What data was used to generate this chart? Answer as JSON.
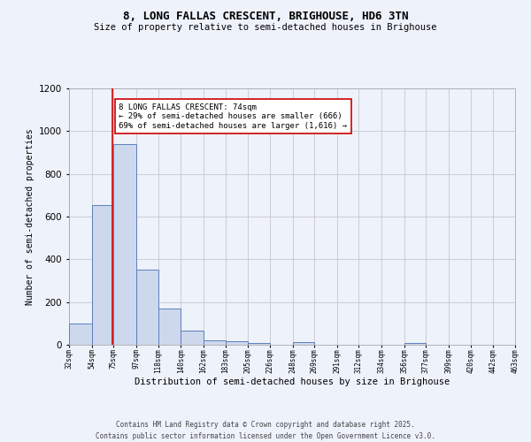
{
  "title_line1": "8, LONG FALLAS CRESCENT, BRIGHOUSE, HD6 3TN",
  "title_line2": "Size of property relative to semi-detached houses in Brighouse",
  "xlabel": "Distribution of semi-detached houses by size in Brighouse",
  "ylabel": "Number of semi-detached properties",
  "bar_edges": [
    32,
    54,
    75,
    97,
    118,
    140,
    162,
    183,
    205,
    226,
    248,
    269,
    291,
    312,
    334,
    356,
    377,
    399,
    420,
    442,
    463
  ],
  "bar_heights": [
    100,
    655,
    940,
    350,
    170,
    65,
    22,
    18,
    8,
    0,
    13,
    0,
    0,
    0,
    0,
    10,
    0,
    0,
    0,
    0
  ],
  "bar_color": "#cdd8ed",
  "bar_edge_color": "#5b7fbc",
  "bar_linewidth": 0.7,
  "property_value": 74,
  "red_line_color": "#cc0000",
  "ylim": [
    0,
    1200
  ],
  "yticks": [
    0,
    200,
    400,
    600,
    800,
    1000,
    1200
  ],
  "grid_color": "#c8c8c8",
  "background_color": "#eef2fb",
  "annotation_text": "8 LONG FALLAS CRESCENT: 74sqm\n← 29% of semi-detached houses are smaller (666)\n69% of semi-detached houses are larger (1,616) →",
  "annotation_box_facecolor": "#ffffff",
  "annotation_box_edgecolor": "#cc0000",
  "tick_labels": [
    "32sqm",
    "54sqm",
    "75sqm",
    "97sqm",
    "118sqm",
    "140sqm",
    "162sqm",
    "183sqm",
    "205sqm",
    "226sqm",
    "248sqm",
    "269sqm",
    "291sqm",
    "312sqm",
    "334sqm",
    "356sqm",
    "377sqm",
    "399sqm",
    "420sqm",
    "442sqm",
    "463sqm"
  ],
  "footer_line1": "Contains HM Land Registry data © Crown copyright and database right 2025.",
  "footer_line2": "Contains public sector information licensed under the Open Government Licence v3.0."
}
